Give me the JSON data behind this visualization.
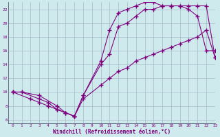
{
  "xlabel": "Windchill (Refroidissement éolien,°C)",
  "bg_color": "#ceeaec",
  "line_color": "#800080",
  "grid_color": "#aab8cc",
  "xlim": [
    -0.5,
    23
  ],
  "ylim": [
    5.5,
    23
  ],
  "xticks": [
    0,
    1,
    2,
    3,
    4,
    5,
    6,
    7,
    8,
    9,
    10,
    11,
    12,
    13,
    14,
    15,
    16,
    17,
    18,
    19,
    20,
    21,
    22,
    23
  ],
  "yticks": [
    6,
    8,
    10,
    12,
    14,
    16,
    18,
    20,
    22
  ],
  "series1_x": [
    0,
    1,
    3,
    4,
    5,
    6,
    7,
    8,
    10,
    11,
    12,
    13,
    14,
    15,
    16,
    17,
    18,
    19,
    20,
    21,
    22,
    23
  ],
  "series1_y": [
    10,
    10,
    9,
    8.5,
    7.5,
    7,
    6.5,
    9.5,
    14.5,
    19,
    21.5,
    22,
    22.5,
    23,
    23,
    22.5,
    22.5,
    22.5,
    22.5,
    22.5,
    22.5,
    15
  ],
  "series2_x": [
    0,
    1,
    3,
    5,
    6,
    7,
    8,
    10,
    11,
    12,
    13,
    14,
    15,
    16,
    17,
    18,
    19,
    20,
    21,
    22,
    23
  ],
  "series2_y": [
    10,
    10,
    9.5,
    8,
    7,
    6.5,
    9.5,
    14,
    15.5,
    19.5,
    20,
    21,
    22,
    22,
    22.5,
    22.5,
    22.5,
    22,
    21,
    16,
    16
  ],
  "series3_x": [
    0,
    2,
    3,
    4,
    5,
    6,
    7,
    8,
    10,
    11,
    12,
    13,
    14,
    15,
    16,
    17,
    18,
    19,
    20,
    21,
    22,
    23
  ],
  "series3_y": [
    10,
    9,
    8.5,
    8,
    7.5,
    7,
    6.5,
    9,
    11,
    12,
    13,
    13.5,
    14.5,
    15,
    15.5,
    16,
    16.5,
    17,
    17.5,
    18,
    19,
    15
  ]
}
